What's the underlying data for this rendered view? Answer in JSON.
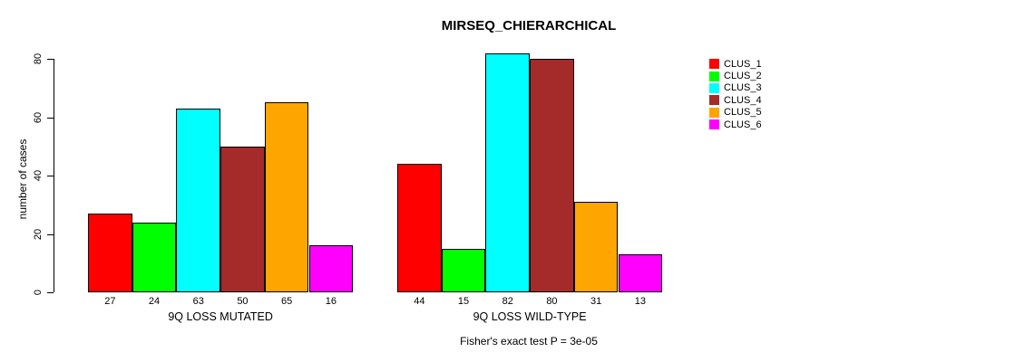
{
  "chart_data": {
    "type": "bar",
    "title": "MIRSEQ_CHIERARCHICAL",
    "ylabel": "number of cases",
    "xlabel": "",
    "ylim": [
      0,
      80
    ],
    "yticks": [
      0,
      20,
      40,
      60,
      80
    ],
    "grid": false,
    "legend_position": "right",
    "categories": [
      "9Q LOSS MUTATED",
      "9Q LOSS WILD-TYPE"
    ],
    "series": [
      {
        "name": "CLUS_1",
        "color": "#FF0000",
        "values": [
          27,
          44
        ]
      },
      {
        "name": "CLUS_2",
        "color": "#00FF00",
        "values": [
          24,
          15
        ]
      },
      {
        "name": "CLUS_3",
        "color": "#00FFFF",
        "values": [
          63,
          82
        ]
      },
      {
        "name": "CLUS_4",
        "color": "#A52A2A",
        "values": [
          50,
          80
        ]
      },
      {
        "name": "CLUS_5",
        "color": "#FFA500",
        "values": [
          65,
          31
        ]
      },
      {
        "name": "CLUS_6",
        "color": "#FF00FF",
        "values": [
          16,
          13
        ]
      }
    ],
    "bar_value_labels": [
      [
        27,
        24,
        63,
        50,
        65,
        16
      ],
      [
        44,
        15,
        82,
        80,
        31,
        13
      ]
    ],
    "annotation": "Fisher's exact test P = 3e-05"
  }
}
